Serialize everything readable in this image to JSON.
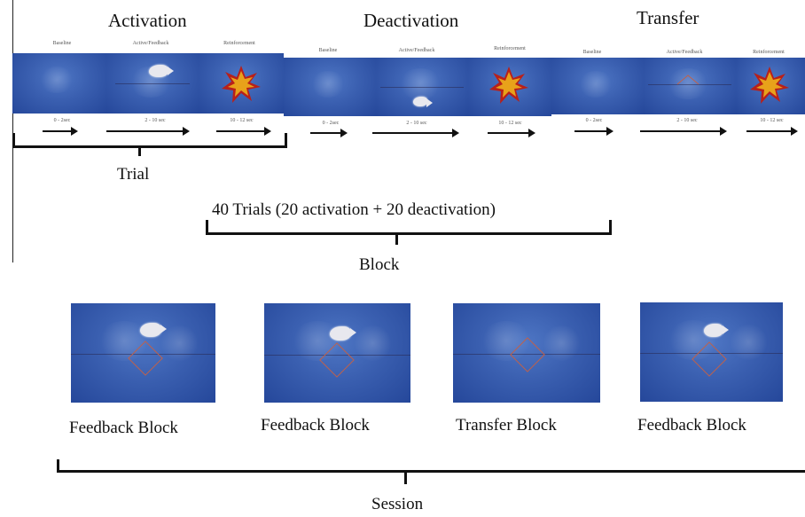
{
  "headings": {
    "activation": "Activation",
    "deactivation": "Deactivation",
    "transfer": "Transfer"
  },
  "panel_labels": {
    "baseline": "Baseline",
    "active_feedback": "Active/Feedback",
    "reinforcement": "Reinforcement"
  },
  "timings": {
    "baseline": "0 - 2sec",
    "active": "2 - 10 sec",
    "reinforcement": "10 - 12 sec"
  },
  "labels": {
    "trial": "Trial",
    "trials_summary": "40 Trials (20 activation + 20 deactivation)",
    "block": "Block",
    "session": "Session"
  },
  "blocks": [
    {
      "label": "Feedback Block"
    },
    {
      "label": "Feedback Block"
    },
    {
      "label": "Transfer Block"
    },
    {
      "label": "Feedback Block"
    }
  ],
  "colors": {
    "panel_blue": "#3a5fb0",
    "star_orange": "#e8a21a",
    "star_red": "#b8201a",
    "target_red": "#c0614a"
  },
  "icons": [
    "fish-icon",
    "star-burst-icon",
    "target-diamond-icon",
    "arrow-icon",
    "bracket-icon"
  ]
}
